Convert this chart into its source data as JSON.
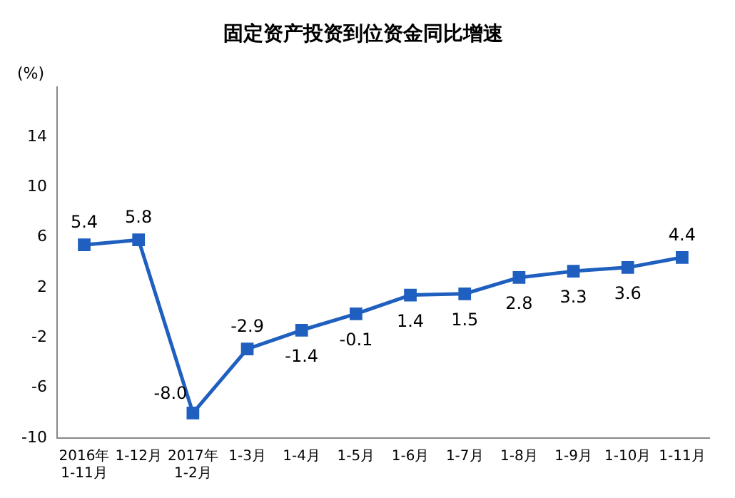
{
  "chart_data": {
    "type": "line",
    "title": "固定资产投资到位资金同比增速",
    "ylabel": "(%)",
    "categories": [
      "2016年\n1-11月",
      "1-12月",
      "2017年\n1-2月",
      "1-3月",
      "1-4月",
      "1-5月",
      "1-6月",
      "1-7月",
      "1-8月",
      "1-9月",
      "1-10月",
      "1-11月"
    ],
    "series": [
      {
        "color": "#1f5fbf",
        "values": [
          5.4,
          5.8,
          -8.0,
          -2.9,
          -1.4,
          -0.1,
          1.4,
          1.5,
          2.8,
          3.3,
          3.6,
          4.4
        ],
        "value_labels": [
          "5.4",
          "5.8",
          "-8.0",
          "-2.9",
          "-1.4",
          "-0.1",
          "1.4",
          "1.5",
          "2.8",
          "3.3",
          "3.6",
          "4.4"
        ]
      }
    ],
    "ylim": [
      -10,
      18
    ],
    "yticks": [
      -10,
      -6,
      -2,
      2,
      6,
      10,
      14
    ],
    "grid": false,
    "legend": false,
    "marker": "square",
    "line_style": "solid"
  }
}
